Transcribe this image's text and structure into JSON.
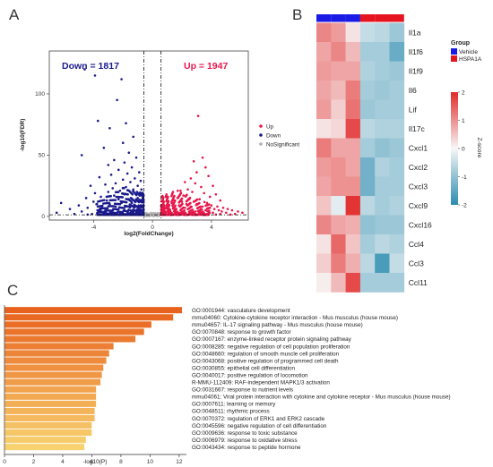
{
  "chart_data": [
    {
      "panel": "A",
      "type": "scatter",
      "xlabel": "log2(FoldChange)",
      "ylabel": "-log10(FDR)",
      "xlim": [
        -7,
        6.5
      ],
      "ylim": [
        -3,
        135
      ],
      "xticks": [
        -4,
        0,
        4
      ],
      "yticks": [
        0,
        50,
        100
      ],
      "thresholds": {
        "x": [
          -0.58,
          0.58
        ],
        "y": 1.3
      },
      "annotations": {
        "down": "Down = 1817",
        "up": "Up = 1947"
      },
      "legend": {
        "placement": "right",
        "entries": [
          "Up",
          "Down",
          "NoSignificant"
        ]
      },
      "colors": {
        "up": "#e8174a",
        "down": "#1a1a8c",
        "nonsig": "#b0b0b0"
      },
      "series": [
        {
          "name": "Up",
          "points": [
            [
              3.1,
              82
            ],
            [
              3.4,
              48
            ],
            [
              2.8,
              45
            ],
            [
              3.6,
              40
            ],
            [
              3.0,
              36
            ],
            [
              3.8,
              33
            ],
            [
              2.6,
              31
            ],
            [
              2.2,
              28
            ],
            [
              2.9,
              27
            ],
            [
              4.1,
              25
            ],
            [
              3.3,
              24
            ],
            [
              2.4,
              22
            ],
            [
              1.9,
              21
            ],
            [
              2.7,
              20
            ],
            [
              3.5,
              19
            ],
            [
              4.3,
              18
            ],
            [
              2.1,
              17
            ],
            [
              3.9,
              16
            ],
            [
              1.7,
              15
            ],
            [
              2.5,
              14
            ],
            [
              3.2,
              14
            ],
            [
              4.6,
              13
            ],
            [
              1.5,
              13
            ],
            [
              2.0,
              12
            ],
            [
              2.8,
              12
            ],
            [
              3.7,
              11
            ],
            [
              1.3,
              11
            ],
            [
              2.3,
              10
            ],
            [
              3.0,
              10
            ],
            [
              4.0,
              9
            ],
            [
              1.1,
              9
            ],
            [
              1.8,
              9
            ],
            [
              2.6,
              8
            ],
            [
              3.4,
              8
            ],
            [
              4.4,
              8
            ],
            [
              0.9,
              7
            ],
            [
              1.4,
              7
            ],
            [
              2.2,
              7
            ],
            [
              3.1,
              7
            ],
            [
              3.9,
              7
            ],
            [
              4.8,
              7
            ],
            [
              0.8,
              6
            ],
            [
              1.6,
              6
            ],
            [
              2.4,
              6
            ],
            [
              3.3,
              6
            ],
            [
              4.2,
              6
            ],
            [
              5.1,
              6
            ],
            [
              0.75,
              5
            ],
            [
              1.2,
              5
            ],
            [
              1.9,
              5
            ],
            [
              2.7,
              5
            ],
            [
              3.6,
              5
            ],
            [
              4.5,
              5
            ],
            [
              5.4,
              5
            ],
            [
              0.7,
              4
            ],
            [
              1.0,
              4
            ],
            [
              1.5,
              4
            ],
            [
              2.1,
              4
            ],
            [
              2.9,
              4
            ],
            [
              3.8,
              4
            ],
            [
              4.7,
              4
            ],
            [
              5.8,
              4
            ],
            [
              0.65,
              3
            ],
            [
              0.9,
              3
            ],
            [
              1.3,
              3
            ],
            [
              1.8,
              3
            ],
            [
              2.5,
              3
            ],
            [
              3.2,
              3
            ],
            [
              4.1,
              3
            ],
            [
              5.0,
              3
            ],
            [
              6.1,
              3
            ],
            [
              0.62,
              2
            ],
            [
              0.85,
              2
            ],
            [
              1.1,
              2
            ],
            [
              1.6,
              2
            ],
            [
              2.2,
              2
            ],
            [
              2.9,
              2
            ],
            [
              3.7,
              2
            ],
            [
              4.6,
              2
            ],
            [
              5.6,
              2
            ],
            [
              0.6,
              1.5
            ],
            [
              0.8,
              1.5
            ],
            [
              1.0,
              1.5
            ],
            [
              1.4,
              1.5
            ],
            [
              1.9,
              1.5
            ],
            [
              2.6,
              1.5
            ],
            [
              3.4,
              1.5
            ],
            [
              4.3,
              1.5
            ],
            [
              5.3,
              1.5
            ]
          ]
        },
        {
          "name": "Down",
          "points": [
            [
              -4.6,
              120
            ],
            [
              -3.9,
              115
            ],
            [
              -2.1,
              112
            ],
            [
              -2.4,
              95
            ],
            [
              -3.7,
              78
            ],
            [
              -1.8,
              76
            ],
            [
              -2.9,
              72
            ],
            [
              -1.3,
              65
            ],
            [
              -2.0,
              60
            ],
            [
              -3.3,
              56
            ],
            [
              -1.6,
              52
            ],
            [
              -4.8,
              50
            ],
            [
              -1.1,
              48
            ],
            [
              -2.6,
              46
            ],
            [
              -1.9,
              44
            ],
            [
              -3.0,
              42
            ],
            [
              -1.4,
              40
            ],
            [
              -2.3,
              38
            ],
            [
              -0.9,
              36
            ],
            [
              -1.7,
              35
            ],
            [
              -2.8,
              34
            ],
            [
              -3.6,
              32
            ],
            [
              -1.2,
              31
            ],
            [
              -2.0,
              30
            ],
            [
              -0.8,
              29
            ],
            [
              -1.5,
              28
            ],
            [
              -2.5,
              27
            ],
            [
              -3.2,
              26
            ],
            [
              -4.2,
              25
            ],
            [
              -1.0,
              25
            ],
            [
              -1.8,
              24
            ],
            [
              -2.7,
              23
            ],
            [
              -0.75,
              22
            ],
            [
              -1.3,
              22
            ],
            [
              -2.2,
              21
            ],
            [
              -3.0,
              20
            ],
            [
              -3.9,
              19
            ],
            [
              -0.7,
              19
            ],
            [
              -1.1,
              18
            ],
            [
              -1.9,
              18
            ],
            [
              -2.6,
              17
            ],
            [
              -3.5,
              16
            ],
            [
              -4.5,
              15
            ],
            [
              -0.65,
              15
            ],
            [
              -1.0,
              15
            ],
            [
              -1.6,
              14
            ],
            [
              -2.3,
              14
            ],
            [
              -3.1,
              13
            ],
            [
              -4.0,
              12
            ],
            [
              -0.62,
              12
            ],
            [
              -0.9,
              12
            ],
            [
              -1.4,
              11
            ],
            [
              -2.1,
              11
            ],
            [
              -2.9,
              10
            ],
            [
              -3.8,
              10
            ],
            [
              -5.0,
              9
            ],
            [
              -0.6,
              9
            ],
            [
              -0.8,
              9
            ],
            [
              -1.2,
              8
            ],
            [
              -1.8,
              8
            ],
            [
              -2.5,
              8
            ],
            [
              -3.4,
              7
            ],
            [
              -4.4,
              7
            ],
            [
              -5.6,
              6
            ],
            [
              -0.6,
              6
            ],
            [
              -0.9,
              6
            ],
            [
              -1.3,
              5
            ],
            [
              -1.9,
              5
            ],
            [
              -2.7,
              5
            ],
            [
              -3.6,
              4
            ],
            [
              -4.8,
              4
            ],
            [
              -6.2,
              11
            ],
            [
              -6.5,
              3
            ],
            [
              -0.62,
              3
            ],
            [
              -1.0,
              3
            ],
            [
              -1.5,
              3
            ],
            [
              -2.2,
              3
            ],
            [
              -3.1,
              2
            ],
            [
              -4.1,
              2
            ],
            [
              -5.3,
              2
            ],
            [
              -0.65,
              1.8
            ],
            [
              -1.1,
              1.8
            ],
            [
              -1.7,
              1.6
            ],
            [
              -2.4,
              1.6
            ],
            [
              -3.3,
              1.5
            ],
            [
              -4.4,
              1.5
            ]
          ]
        }
      ]
    },
    {
      "panel": "B",
      "type": "heatmap",
      "rows": [
        "Il1a",
        "Il1f6",
        "Il1f9",
        "Il6",
        "Lif",
        "Il17c",
        "Cxcl1",
        "Cxcl2",
        "Cxcl3",
        "Cxcl9",
        "Cxcl16",
        "Ccl4",
        "Ccl3",
        "Ccl11"
      ],
      "columns": [
        "Vehicle",
        "Vehicle",
        "Vehicle",
        "HSPA1A",
        "HSPA1A",
        "HSPA1A"
      ],
      "values": [
        [
          1.1,
          0.9,
          0.2,
          -0.5,
          -0.6,
          -0.9
        ],
        [
          0.8,
          1.1,
          0.6,
          -0.8,
          -0.8,
          -1.4
        ],
        [
          0.9,
          0.8,
          0.8,
          -0.7,
          -0.8,
          -0.9
        ],
        [
          0.8,
          0.6,
          1.2,
          -0.8,
          -0.9,
          -0.8
        ],
        [
          0.9,
          0.4,
          1.3,
          -0.9,
          -0.8,
          -0.8
        ],
        [
          0.2,
          0.3,
          1.7,
          -0.6,
          -0.7,
          -0.7
        ],
        [
          1.2,
          0.8,
          0.8,
          -0.8,
          -1.0,
          -0.9
        ],
        [
          0.9,
          1.0,
          0.8,
          -1.3,
          -0.7,
          -0.8
        ],
        [
          0.8,
          1.0,
          1.0,
          -1.3,
          -0.8,
          -0.8
        ],
        [
          0.5,
          -0.2,
          1.9,
          -0.6,
          -0.8,
          -0.7
        ],
        [
          1.1,
          0.8,
          0.7,
          -1.0,
          -0.9,
          -0.9
        ],
        [
          0.2,
          1.4,
          0.5,
          -0.8,
          -0.6,
          -0.7
        ],
        [
          0.4,
          1.2,
          0.7,
          -0.6,
          -1.7,
          -0.5
        ],
        [
          0.1,
          0.6,
          1.7,
          -0.8,
          -0.8,
          -0.8
        ]
      ],
      "legend": {
        "title": "Group",
        "entries": [
          {
            "name": "Vehicle",
            "color": "#1a1ae6"
          },
          {
            "name": "HSPA1A",
            "color": "#e6141e"
          }
        ]
      },
      "colorbar": {
        "title": "Z-score",
        "range": [
          -2,
          2
        ],
        "ticks": [
          2,
          1,
          0,
          -1,
          -2
        ],
        "colors": [
          "#2b8cb0",
          "#f7f7f7",
          "#e22a2a"
        ]
      }
    },
    {
      "panel": "C",
      "type": "bar",
      "orientation": "horizontal",
      "xlabel": "-log10(P)",
      "xlim": [
        0,
        12.5
      ],
      "xticks": [
        0,
        2,
        4,
        6,
        8,
        10,
        12
      ],
      "colors": {
        "top": "#e8621e",
        "bottom": "#f8d270"
      },
      "categories": [
        "GO:0001944: vasculature development",
        "mmu04060: Cytokine-cytokine receptor interaction - Mus musculus (house mouse)",
        "mmu04657: IL-17 signaling pathway - Mus musculus (house mouse)",
        "GO:0070848: response to growth factor",
        "GO:0007167: enzyme-linked receptor protein signaling pathway",
        "GO:0008285: negative regulation of cell population proliferation",
        "GO:0048660: regulation of smooth muscle cell proliferation",
        "GO:0043068: positive regulation of programmed cell death",
        "GO:0030855: epithelial cell differentiation",
        "GO:0040017: positive regulation of locomotion",
        "R-MMU-112409: RAF-independent MAPK1/3 activation",
        "GO:0031667: response to nutrient levels",
        "mmu04061: Viral protein interaction with cytokine and cytokine receptor - Mus musculus (house mouse)",
        "GO:0007611: learning or memory",
        "GO:0048511: rhythmic process",
        "GO:0070372: regulation of ERK1 and ERK2 cascade",
        "GO:0045596: negative regulation of cell differentiation",
        "GO:0009636: response to toxic substance",
        "GO:0006979: response to oxidative stress",
        "GO:0043434: response to peptide hormone"
      ],
      "values": [
        12.2,
        11.6,
        10.1,
        9.6,
        9.0,
        7.5,
        7.2,
        7.0,
        6.8,
        6.7,
        6.6,
        6.3,
        6.3,
        6.3,
        6.2,
        6.2,
        6.0,
        6.0,
        5.6,
        5.5
      ]
    }
  ],
  "panel_letters": [
    "A",
    "B",
    "C"
  ]
}
